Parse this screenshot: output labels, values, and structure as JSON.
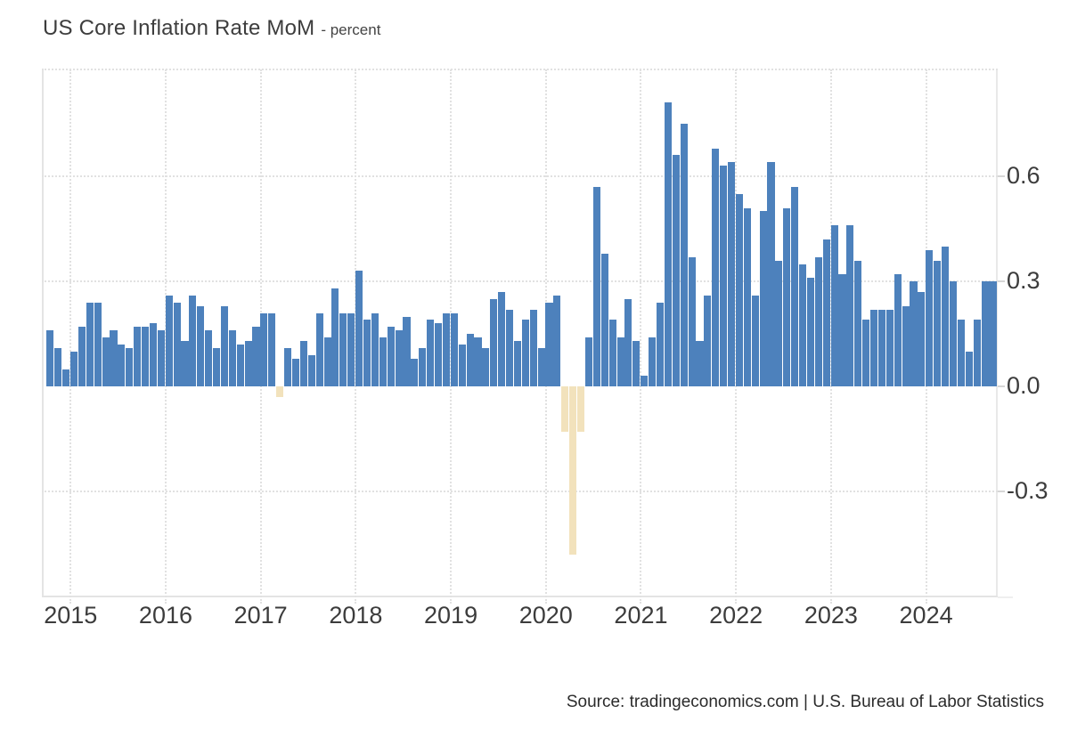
{
  "title": {
    "main": "US Core Inflation Rate MoM",
    "suffix": "- percent"
  },
  "source": "Source: tradingeconomics.com | U.S. Bureau of Labor Statistics",
  "colors": {
    "bar_positive": "#4d81bc",
    "bar_negative": "#f2e2bc",
    "gridline": "#e1e1e1",
    "axis_border": "#e4e4e4",
    "title_text": "#3d3d3d",
    "axis_text": "#3c3c3c",
    "source_text": "#2b2b2b",
    "background": "#ffffff"
  },
  "chart_data": {
    "type": "bar",
    "title": "US Core Inflation Rate MoM",
    "subtitle": "percent",
    "xlabel": "",
    "ylabel": "percent",
    "start_month": "2014-10",
    "end_month": "2024-09",
    "frequency": "monthly",
    "grid": "dotted",
    "legend_position": "none",
    "ylim": [
      -0.605,
      0.905
    ],
    "y_ticks": [
      0.6,
      0.3,
      0.0,
      -0.3
    ],
    "y_tick_labels": [
      "0.6",
      "0.3",
      "0.0",
      "-0.3"
    ],
    "x_tick_labels": [
      "2015",
      "2016",
      "2017",
      "2018",
      "2019",
      "2020",
      "2021",
      "2022",
      "2023",
      "2024"
    ],
    "series": [
      {
        "name": "US Core Inflation Rate MoM",
        "values": [
          0.16,
          0.11,
          0.05,
          0.1,
          0.17,
          0.24,
          0.24,
          0.14,
          0.16,
          0.12,
          0.11,
          0.17,
          0.17,
          0.18,
          0.16,
          0.26,
          0.24,
          0.13,
          0.26,
          0.23,
          0.16,
          0.11,
          0.23,
          0.16,
          0.12,
          0.13,
          0.17,
          0.21,
          0.21,
          -0.03,
          0.11,
          0.08,
          0.13,
          0.09,
          0.21,
          0.14,
          0.28,
          0.21,
          0.21,
          0.33,
          0.19,
          0.21,
          0.14,
          0.17,
          0.16,
          0.2,
          0.08,
          0.11,
          0.19,
          0.18,
          0.21,
          0.21,
          0.12,
          0.15,
          0.14,
          0.11,
          0.25,
          0.27,
          0.22,
          0.13,
          0.19,
          0.22,
          0.11,
          0.24,
          0.26,
          -0.13,
          -0.48,
          -0.13,
          0.14,
          0.57,
          0.38,
          0.19,
          0.14,
          0.25,
          0.13,
          0.03,
          0.14,
          0.24,
          0.81,
          0.66,
          0.75,
          0.37,
          0.13,
          0.26,
          0.68,
          0.63,
          0.64,
          0.55,
          0.51,
          0.26,
          0.5,
          0.64,
          0.36,
          0.51,
          0.57,
          0.35,
          0.31,
          0.37,
          0.42,
          0.46,
          0.32,
          0.46,
          0.36,
          0.19,
          0.22,
          0.22,
          0.22,
          0.32,
          0.23,
          0.3,
          0.27,
          0.39,
          0.36,
          0.4,
          0.3,
          0.19,
          0.1,
          0.19,
          0.3,
          0.3
        ]
      }
    ],
    "annotations": {
      "negative_months": [
        "2017-03",
        "2020-03",
        "2020-04",
        "2020-05"
      ],
      "max_value": 0.81,
      "min_value": -0.48
    }
  }
}
